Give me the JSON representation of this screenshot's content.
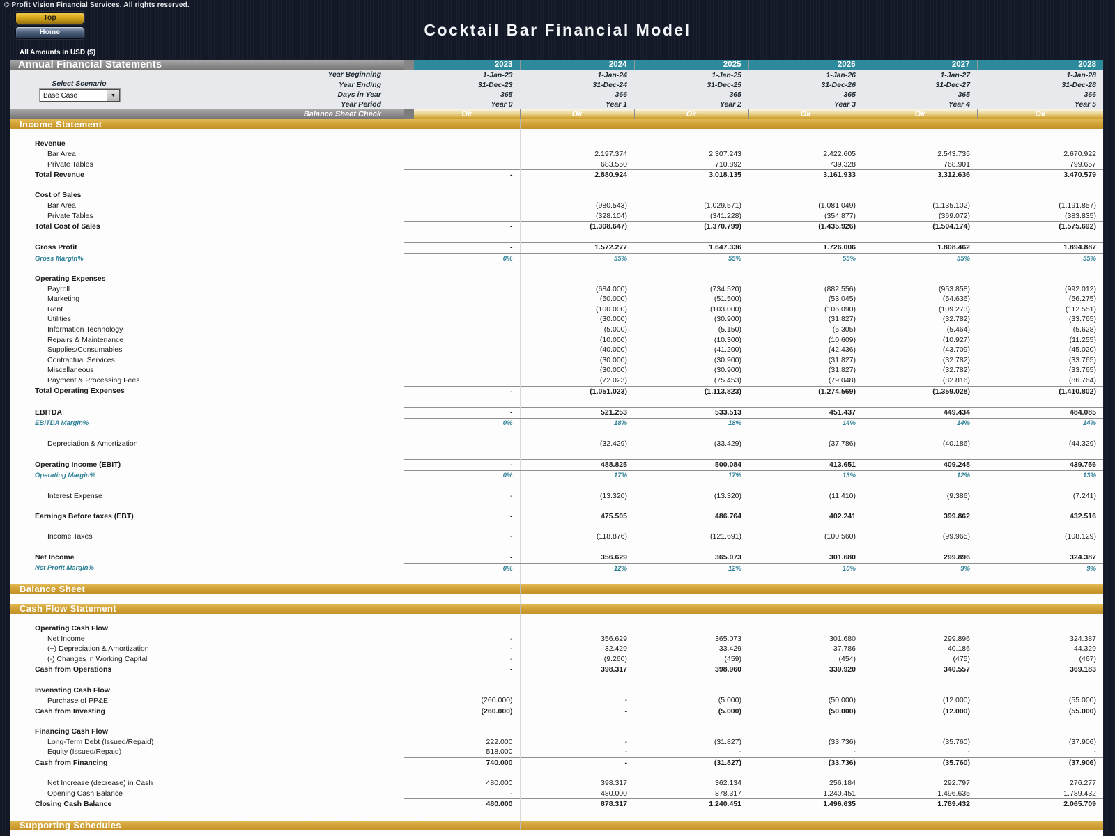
{
  "page": {
    "copyright": "© Profit Vision Financial Services. All rights reserved.",
    "title": "Cocktail Bar Financial Model",
    "amounts_note": "All Amounts in  USD ($)"
  },
  "buttons": {
    "top": "Top",
    "home": "Home"
  },
  "scenario": {
    "label": "Select Scenario",
    "value": "Base Case"
  },
  "colors": {
    "accent_gold": "#d2a337",
    "accent_teal": "#2d8a9d",
    "header_gray": "#8d8d8d",
    "margin_teal_text": "#2c7f95"
  },
  "table": {
    "title": "Annual Financial Statements",
    "years": [
      "2023",
      "2024",
      "2025",
      "2026",
      "2027",
      "2028"
    ],
    "info_rows": [
      {
        "label": "Year Beginning",
        "values": [
          "1-Jan-23",
          "1-Jan-24",
          "1-Jan-25",
          "1-Jan-26",
          "1-Jan-27",
          "1-Jan-28"
        ]
      },
      {
        "label": "Year Ending",
        "values": [
          "31-Dec-23",
          "31-Dec-24",
          "31-Dec-25",
          "31-Dec-26",
          "31-Dec-27",
          "31-Dec-28"
        ]
      },
      {
        "label": "Days in Year",
        "values": [
          "365",
          "366",
          "365",
          "365",
          "365",
          "366"
        ]
      },
      {
        "label": "Year Period",
        "values": [
          "Year 0",
          "Year 1",
          "Year 2",
          "Year 3",
          "Year 4",
          "Year 5"
        ]
      }
    ],
    "check_row": {
      "label": "Balance Sheet Check",
      "values": [
        "Ok",
        "Ok",
        "Ok",
        "Ok",
        "Ok",
        "Ok"
      ]
    },
    "rows": [
      {
        "t": "band",
        "l": "Income Statement"
      },
      {
        "t": "blank"
      },
      {
        "t": "head",
        "l": "Revenue"
      },
      {
        "t": "item",
        "l": "Bar Area",
        "v": [
          "",
          "2.197.374",
          "2.307.243",
          "2.422.605",
          "2.543.735",
          "2.670.922"
        ]
      },
      {
        "t": "item",
        "l": "Private Tables",
        "v": [
          "",
          "683.550",
          "710.892",
          "739.328",
          "768.901",
          "799.657"
        ]
      },
      {
        "t": "total",
        "l": "Total Revenue",
        "b": "t",
        "v": [
          "-",
          "2.880.924",
          "3.018.135",
          "3.161.933",
          "3.312.636",
          "3.470.579"
        ]
      },
      {
        "t": "blank"
      },
      {
        "t": "head",
        "l": "Cost of Sales"
      },
      {
        "t": "item",
        "l": "Bar Area",
        "v": [
          "",
          "(980.543)",
          "(1.029.571)",
          "(1.081.049)",
          "(1.135.102)",
          "(1.191.857)"
        ]
      },
      {
        "t": "item",
        "l": "Private Tables",
        "v": [
          "",
          "(328.104)",
          "(341.228)",
          "(354.877)",
          "(369.072)",
          "(383.835)"
        ]
      },
      {
        "t": "total",
        "l": "Total Cost of Sales",
        "b": "t",
        "v": [
          "-",
          "(1.308.647)",
          "(1.370.799)",
          "(1.435.926)",
          "(1.504.174)",
          "(1.575.692)"
        ]
      },
      {
        "t": "blank"
      },
      {
        "t": "total",
        "l": "Gross Profit",
        "b": "tb",
        "v": [
          "-",
          "1.572.277",
          "1.647.336",
          "1.726.006",
          "1.808.462",
          "1.894.887"
        ]
      },
      {
        "t": "margin",
        "l": "Gross Margin%",
        "v": [
          "0%",
          "55%",
          "55%",
          "55%",
          "55%",
          "55%"
        ]
      },
      {
        "t": "blank"
      },
      {
        "t": "head",
        "l": "Operating Expenses"
      },
      {
        "t": "item",
        "l": "Payroll",
        "v": [
          "",
          "(684.000)",
          "(734.520)",
          "(882.556)",
          "(953.858)",
          "(992.012)"
        ]
      },
      {
        "t": "item",
        "l": "Marketing",
        "v": [
          "",
          "(50.000)",
          "(51.500)",
          "(53.045)",
          "(54.636)",
          "(56.275)"
        ]
      },
      {
        "t": "item",
        "l": "Rent",
        "v": [
          "",
          "(100.000)",
          "(103.000)",
          "(106.090)",
          "(109.273)",
          "(112.551)"
        ]
      },
      {
        "t": "item",
        "l": "Utilities",
        "v": [
          "",
          "(30.000)",
          "(30.900)",
          "(31.827)",
          "(32.782)",
          "(33.765)"
        ]
      },
      {
        "t": "item",
        "l": "Information Technology",
        "v": [
          "",
          "(5.000)",
          "(5.150)",
          "(5.305)",
          "(5.464)",
          "(5.628)"
        ]
      },
      {
        "t": "item",
        "l": "Repairs & Maintenance",
        "v": [
          "",
          "(10.000)",
          "(10.300)",
          "(10.609)",
          "(10.927)",
          "(11.255)"
        ]
      },
      {
        "t": "item",
        "l": "Supplies/Consumables",
        "v": [
          "",
          "(40.000)",
          "(41.200)",
          "(42.436)",
          "(43.709)",
          "(45.020)"
        ]
      },
      {
        "t": "item",
        "l": "Contractual Services",
        "v": [
          "",
          "(30.000)",
          "(30.900)",
          "(31.827)",
          "(32.782)",
          "(33.765)"
        ]
      },
      {
        "t": "item",
        "l": "Miscellaneous",
        "v": [
          "",
          "(30.000)",
          "(30.900)",
          "(31.827)",
          "(32.782)",
          "(33.765)"
        ]
      },
      {
        "t": "item",
        "l": "Payment & Processing Fees",
        "v": [
          "",
          "(72.023)",
          "(75.453)",
          "(79.048)",
          "(82.816)",
          "(86.764)"
        ]
      },
      {
        "t": "total",
        "l": "Total Operating Expenses",
        "b": "t",
        "v": [
          "-",
          "(1.051.023)",
          "(1.113.823)",
          "(1.274.569)",
          "(1.359.028)",
          "(1.410.802)"
        ]
      },
      {
        "t": "blank"
      },
      {
        "t": "total",
        "l": "EBITDA",
        "b": "tb",
        "v": [
          "-",
          "521.253",
          "533.513",
          "451.437",
          "449.434",
          "484.085"
        ]
      },
      {
        "t": "margin",
        "l": "EBITDA Margin%",
        "v": [
          "0%",
          "18%",
          "18%",
          "14%",
          "14%",
          "14%"
        ]
      },
      {
        "t": "blank"
      },
      {
        "t": "item",
        "l": "Depreciation & Amortization",
        "v": [
          "",
          "(32.429)",
          "(33.429)",
          "(37.786)",
          "(40.186)",
          "(44.329)"
        ]
      },
      {
        "t": "blank"
      },
      {
        "t": "total",
        "l": "Operating Income (EBIT)",
        "b": "tb",
        "v": [
          "-",
          "488.825",
          "500.084",
          "413.651",
          "409.248",
          "439.756"
        ]
      },
      {
        "t": "margin",
        "l": "Operating Margin%",
        "v": [
          "0%",
          "17%",
          "17%",
          "13%",
          "12%",
          "13%"
        ]
      },
      {
        "t": "blank"
      },
      {
        "t": "item",
        "l": "Interest Expense",
        "v": [
          "-",
          "(13.320)",
          "(13.320)",
          "(11.410)",
          "(9.386)",
          "(7.241)"
        ]
      },
      {
        "t": "blank"
      },
      {
        "t": "total",
        "l": "Earnings Before taxes (EBT)",
        "v": [
          "-",
          "475.505",
          "486.764",
          "402.241",
          "399.862",
          "432.516"
        ]
      },
      {
        "t": "blank"
      },
      {
        "t": "item",
        "l": "Income Taxes",
        "v": [
          "-",
          "(118.876)",
          "(121.691)",
          "(100.560)",
          "(99.965)",
          "(108.129)"
        ]
      },
      {
        "t": "blank"
      },
      {
        "t": "total",
        "l": "Net Income",
        "b": "tb",
        "v": [
          "-",
          "356.629",
          "365.073",
          "301.680",
          "299.896",
          "324.387"
        ]
      },
      {
        "t": "margin",
        "l": "Net Profit Margin%",
        "v": [
          "0%",
          "12%",
          "12%",
          "10%",
          "9%",
          "9%"
        ]
      },
      {
        "t": "blank"
      },
      {
        "t": "band",
        "l": "Balance Sheet"
      },
      {
        "t": "blank"
      },
      {
        "t": "band",
        "l": "Cash Flow Statement"
      },
      {
        "t": "blank"
      },
      {
        "t": "head",
        "l": "Operating Cash Flow"
      },
      {
        "t": "item",
        "l": "Net Income",
        "v": [
          "-",
          "356.629",
          "365.073",
          "301.680",
          "299.896",
          "324.387"
        ]
      },
      {
        "t": "item",
        "l": "(+) Depreciation & Amortization",
        "v": [
          "-",
          "32.429",
          "33.429",
          "37.786",
          "40.186",
          "44.329"
        ]
      },
      {
        "t": "item",
        "l": "(-) Changes in Working Capital",
        "v": [
          "-",
          "(9.260)",
          "(459)",
          "(454)",
          "(475)",
          "(467)"
        ]
      },
      {
        "t": "total",
        "l": "Cash from Operations",
        "b": "t",
        "v": [
          "-",
          "398.317",
          "398.960",
          "339.920",
          "340.557",
          "369.183"
        ]
      },
      {
        "t": "blank"
      },
      {
        "t": "head",
        "l": "Invensting Cash Flow"
      },
      {
        "t": "item",
        "l": "Purchase of PP&E",
        "v": [
          "(260.000)",
          "-",
          "(5.000)",
          "(50.000)",
          "(12.000)",
          "(55.000)"
        ]
      },
      {
        "t": "total",
        "l": "Cash from Investing",
        "b": "t",
        "v": [
          "(260.000)",
          "-",
          "(5.000)",
          "(50.000)",
          "(12.000)",
          "(55.000)"
        ]
      },
      {
        "t": "blank"
      },
      {
        "t": "head",
        "l": "Financing Cash Flow"
      },
      {
        "t": "item",
        "l": "Long-Term Debt (Issued/Repaid)",
        "v": [
          "222.000",
          "-",
          "(31.827)",
          "(33.736)",
          "(35.760)",
          "(37.906)"
        ]
      },
      {
        "t": "item",
        "l": "Equity (Issued/Repaid)",
        "v": [
          "518.000",
          "-",
          "-",
          "-",
          "-",
          "-"
        ]
      },
      {
        "t": "total",
        "l": "Cash from Financing",
        "b": "t",
        "v": [
          "740.000",
          "-",
          "(31.827)",
          "(33.736)",
          "(35.760)",
          "(37.906)"
        ]
      },
      {
        "t": "blank"
      },
      {
        "t": "item",
        "l": "Net Increase (decrease) in Cash",
        "v": [
          "480.000",
          "398.317",
          "362.134",
          "256.184",
          "292.797",
          "276.277"
        ]
      },
      {
        "t": "item",
        "l": "Opening Cash Balance",
        "v": [
          "-",
          "480.000",
          "878.317",
          "1.240.451",
          "1.496.635",
          "1.789.432"
        ]
      },
      {
        "t": "total",
        "l": "Closing Cash Balance",
        "b": "tb",
        "v": [
          "480.000",
          "878.317",
          "1.240.451",
          "1.496.635",
          "1.789.432",
          "2.065.709"
        ]
      },
      {
        "t": "blank"
      },
      {
        "t": "band",
        "l": "Supporting Schedules"
      },
      {
        "t": "pad"
      }
    ]
  }
}
